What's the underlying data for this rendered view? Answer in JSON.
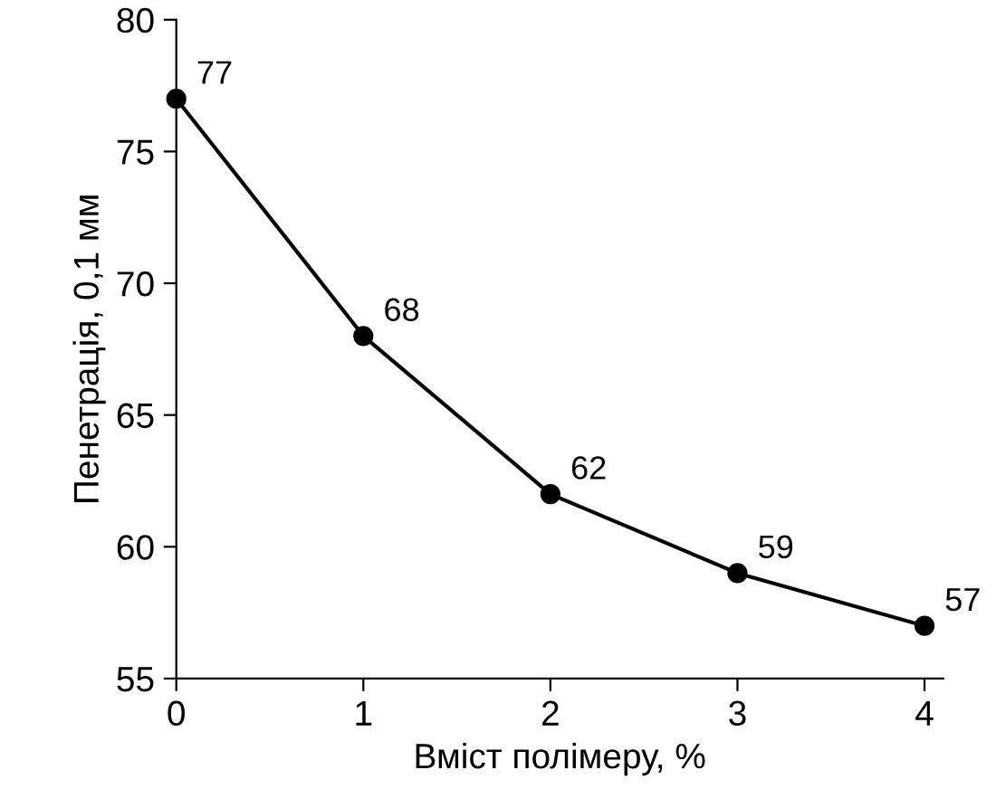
{
  "chart_data": {
    "type": "line",
    "xlabel": "Вміст полімеру, %",
    "ylabel": "Пенетрація, 0,1 мм",
    "x": [
      0,
      1,
      2,
      3,
      4
    ],
    "series": [
      {
        "color": "#000000",
        "values": [
          77,
          68,
          62,
          59,
          57
        ]
      }
    ],
    "xlim": [
      0,
      4.1
    ],
    "xticks": [
      0,
      1,
      2,
      3,
      4
    ],
    "ylim": [
      55,
      80
    ],
    "yticks": [
      55,
      60,
      65,
      70,
      75,
      80
    ],
    "grid": false,
    "legend": false,
    "marker": "circle",
    "line_style": "solid",
    "data_labels": true
  }
}
